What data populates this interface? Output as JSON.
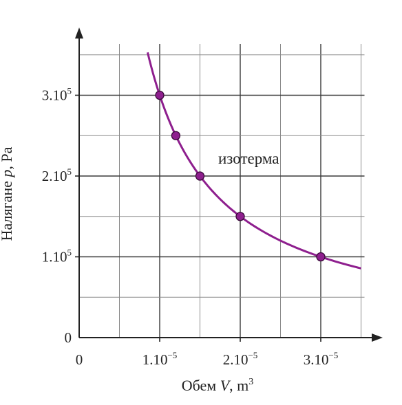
{
  "chart_data": {
    "type": "line",
    "x_unit_power": "−5",
    "y_unit_power": "5",
    "xlim": [
      0,
      3.5
    ],
    "ylim": [
      0,
      3.6
    ],
    "grid_x": [
      0,
      0.5,
      1,
      1.5,
      2,
      2.5,
      3,
      3.5
    ],
    "grid_y": [
      0,
      0.5,
      1,
      1.5,
      2,
      2.5,
      3,
      3.5
    ],
    "x_ticks": [
      {
        "value": 0,
        "mantissa": "0",
        "exp": ""
      },
      {
        "value": 1,
        "mantissa": "1.10",
        "exp": "−5"
      },
      {
        "value": 2,
        "mantissa": "2.10",
        "exp": "−5"
      },
      {
        "value": 3,
        "mantissa": "3.10",
        "exp": "−5"
      }
    ],
    "y_ticks": [
      {
        "value": 0,
        "mantissa": "0",
        "exp": ""
      },
      {
        "value": 1,
        "mantissa": "1.10",
        "exp": "5"
      },
      {
        "value": 2,
        "mantissa": "2.10",
        "exp": "5"
      },
      {
        "value": 3,
        "mantissa": "3.10",
        "exp": "5"
      }
    ],
    "xlabel": {
      "prefix": "Обем ",
      "var": "V",
      "suffix": ", m",
      "exp": "3"
    },
    "ylabel": {
      "prefix": "Налягане ",
      "var": "p",
      "suffix": ", Pa"
    },
    "annotation": "изотерма",
    "series": [
      {
        "color": "#8e1f8e",
        "curve_constant": 3,
        "curve_x_range": [
          0.85,
          3.5
        ],
        "points": [
          {
            "x": 1.0,
            "y": 3.0
          },
          {
            "x": 1.2,
            "y": 2.5
          },
          {
            "x": 1.5,
            "y": 2.0
          },
          {
            "x": 2.0,
            "y": 1.5
          },
          {
            "x": 3.0,
            "y": 1.0
          }
        ]
      }
    ],
    "grid": true
  }
}
